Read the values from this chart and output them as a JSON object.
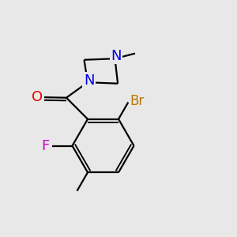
{
  "bg_color": "#e8e8e8",
  "bond_color": "#000000",
  "bond_width": 1.6,
  "atom_colors": {
    "N": "#0000ee",
    "O": "#ee0000",
    "F": "#cc00cc",
    "Br": "#bb7700"
  },
  "font_size_atom": 11,
  "xlim": [
    0,
    10
  ],
  "ylim": [
    0,
    10
  ]
}
